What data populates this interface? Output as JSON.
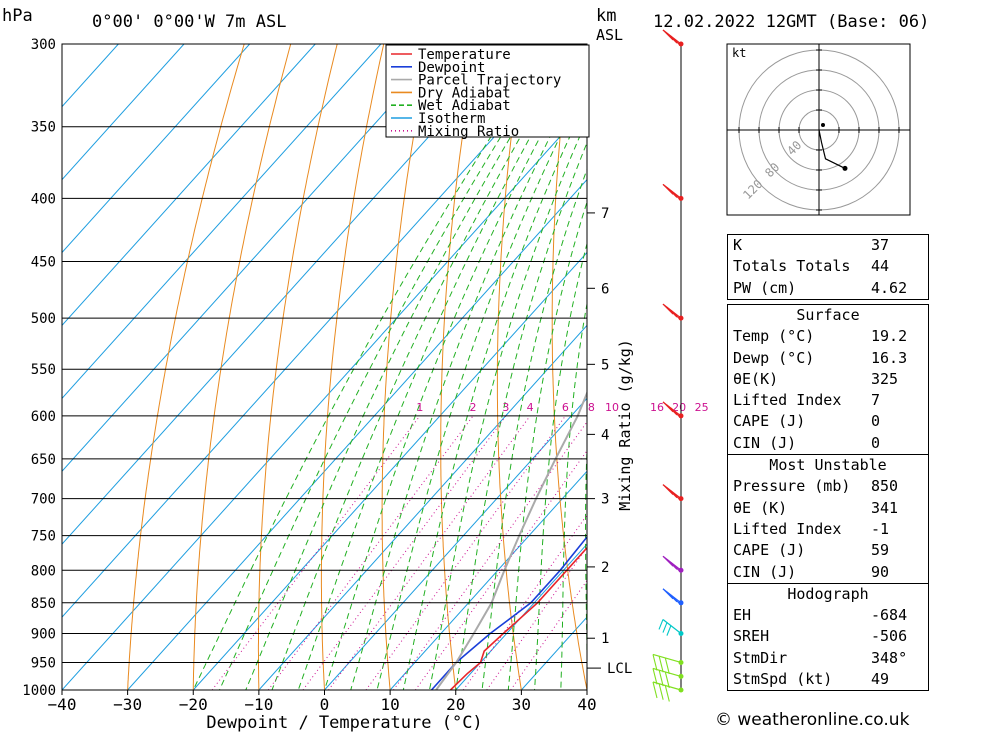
{
  "header": {
    "hpa_label": "hPa",
    "location": "0°00' 0°00'W  7m  ASL",
    "km_label": "km",
    "asl_label": "ASL",
    "datetime": "12.02.2022  12GMT  (Base: 06)"
  },
  "legend": [
    "Temperature",
    "Dewpoint",
    "Parcel Trajectory",
    "Dry Adiabat",
    "Wet Adiabat",
    "Isotherm",
    "Mixing Ratio"
  ],
  "colors": {
    "temperature": "#e8262b",
    "dewpoint": "#1a3fd9",
    "parcel": "#aaaaaa",
    "dry_adiabat": "#e98a20",
    "wet_adiabat": "#22b022",
    "isotherm": "#1e9ee0",
    "mixing_ratio": "#cc1090"
  },
  "chart_data": {
    "type": "line",
    "xlabel": "Dewpoint / Temperature (°C)",
    "x_ticks": [
      -40,
      -30,
      -20,
      -10,
      0,
      10,
      20,
      30,
      40
    ],
    "xlim": [
      -40,
      40
    ],
    "pressure_levels": [
      300,
      350,
      400,
      450,
      500,
      550,
      600,
      650,
      700,
      750,
      800,
      850,
      900,
      950,
      1000
    ],
    "ylim_hpa": [
      1000,
      300
    ],
    "km_ticks": [
      {
        "km": 1,
        "p": 908
      },
      {
        "km": 2,
        "p": 795
      },
      {
        "km": 3,
        "p": 700
      },
      {
        "km": 4,
        "p": 621
      },
      {
        "km": 5,
        "p": 545
      },
      {
        "km": 6,
        "p": 473
      },
      {
        "km": 7,
        "p": 411
      }
    ],
    "lcl_label": "LCL",
    "lcl_p": 960,
    "mixing_ratio_axis_label": "Mixing Ratio (g/kg)",
    "mixing_ratio_values": [
      1,
      2,
      3,
      4,
      6,
      8,
      10,
      16,
      20,
      25
    ],
    "series": [
      {
        "name": "Temperature",
        "points": [
          [
            1000,
            19.2
          ],
          [
            970,
            19.5
          ],
          [
            950,
            20
          ],
          [
            930,
            19
          ],
          [
            900,
            19.5
          ],
          [
            850,
            20.5
          ],
          [
            800,
            20.5
          ],
          [
            750,
            20.5
          ],
          [
            700,
            20
          ],
          [
            650,
            17
          ],
          [
            600,
            13.5
          ],
          [
            550,
            10.5
          ],
          [
            500,
            6
          ],
          [
            450,
            1.5
          ],
          [
            420,
            1.5
          ],
          [
            400,
            1.5
          ],
          [
            385,
            0.5
          ],
          [
            375,
            0
          ],
          [
            370,
            0
          ]
        ]
      },
      {
        "name": "Dewpoint",
        "points": [
          [
            1000,
            16.3
          ],
          [
            950,
            16.3
          ],
          [
            900,
            17.5
          ],
          [
            850,
            19.5
          ],
          [
            800,
            19.5
          ],
          [
            750,
            19
          ],
          [
            700,
            18.5
          ],
          [
            650,
            17
          ],
          [
            600,
            8
          ],
          [
            560,
            -1
          ],
          [
            545,
            1
          ],
          [
            500,
            -11
          ],
          [
            450,
            -10
          ],
          [
            400,
            -13
          ],
          [
            398,
            -10
          ],
          [
            385,
            -3
          ],
          [
            378,
            -6
          ],
          [
            373,
            -1
          ],
          [
            370,
            -5
          ],
          [
            365,
            -1
          ],
          [
            330,
            -2
          ],
          [
            300,
            -2
          ]
        ]
      },
      {
        "name": "Parcel Trajectory",
        "points": [
          [
            1000,
            17
          ],
          [
            950,
            16.3
          ],
          [
            900,
            15
          ],
          [
            850,
            13.5
          ],
          [
            800,
            11
          ],
          [
            750,
            8.5
          ],
          [
            700,
            6
          ],
          [
            650,
            3.5
          ],
          [
            600,
            1
          ],
          [
            550,
            -2.5
          ],
          [
            500,
            -6
          ],
          [
            450,
            -10
          ],
          [
            400,
            -15
          ],
          [
            350,
            -21
          ],
          [
            300,
            -28
          ]
        ]
      }
    ]
  },
  "hodograph": {
    "unit_label": "kt",
    "ring_labels": [
      "40",
      "80",
      "120"
    ],
    "points": [
      [
        0,
        0
      ],
      [
        2,
        -8
      ],
      [
        5,
        -18
      ],
      [
        15,
        -22
      ],
      [
        20,
        -24
      ]
    ]
  },
  "wind_barbs": [
    {
      "p": 1000,
      "color": "#80e020"
    },
    {
      "p": 975,
      "color": "#80e020"
    },
    {
      "p": 950,
      "color": "#80e020"
    },
    {
      "p": 900,
      "color": "#00c8c8"
    },
    {
      "p": 850,
      "color": "#2060ff"
    },
    {
      "p": 800,
      "color": "#a020c0"
    },
    {
      "p": 700,
      "color": "#e82020"
    },
    {
      "p": 600,
      "color": "#e82020"
    },
    {
      "p": 500,
      "color": "#e82020"
    },
    {
      "p": 400,
      "color": "#e82020"
    },
    {
      "p": 300,
      "color": "#e82020"
    }
  ],
  "indices": {
    "basic": [
      {
        "label": "K",
        "value": "37"
      },
      {
        "label": "Totals Totals",
        "value": "44"
      },
      {
        "label": "PW (cm)",
        "value": "4.62"
      }
    ],
    "surface_title": "Surface",
    "surface": [
      {
        "label": "Temp (°C)",
        "value": "19.2"
      },
      {
        "label": "Dewp (°C)",
        "value": "16.3"
      },
      {
        "label": "θE(K)",
        "value": "325"
      },
      {
        "label": "Lifted Index",
        "value": "7"
      },
      {
        "label": "CAPE (J)",
        "value": "0"
      },
      {
        "label": "CIN (J)",
        "value": "0"
      }
    ],
    "mu_title": "Most Unstable",
    "mu": [
      {
        "label": "Pressure (mb)",
        "value": "850"
      },
      {
        "label": "θE (K)",
        "value": "341"
      },
      {
        "label": "Lifted Index",
        "value": "-1"
      },
      {
        "label": "CAPE (J)",
        "value": "59"
      },
      {
        "label": "CIN (J)",
        "value": "90"
      }
    ],
    "hodo_title": "Hodograph",
    "hodo": [
      {
        "label": "EH",
        "value": "-684"
      },
      {
        "label": "SREH",
        "value": "-506"
      },
      {
        "label": "StmDir",
        "value": "348°"
      },
      {
        "label": "StmSpd (kt)",
        "value": "49"
      }
    ]
  },
  "credit": "© weatheronline.co.uk"
}
